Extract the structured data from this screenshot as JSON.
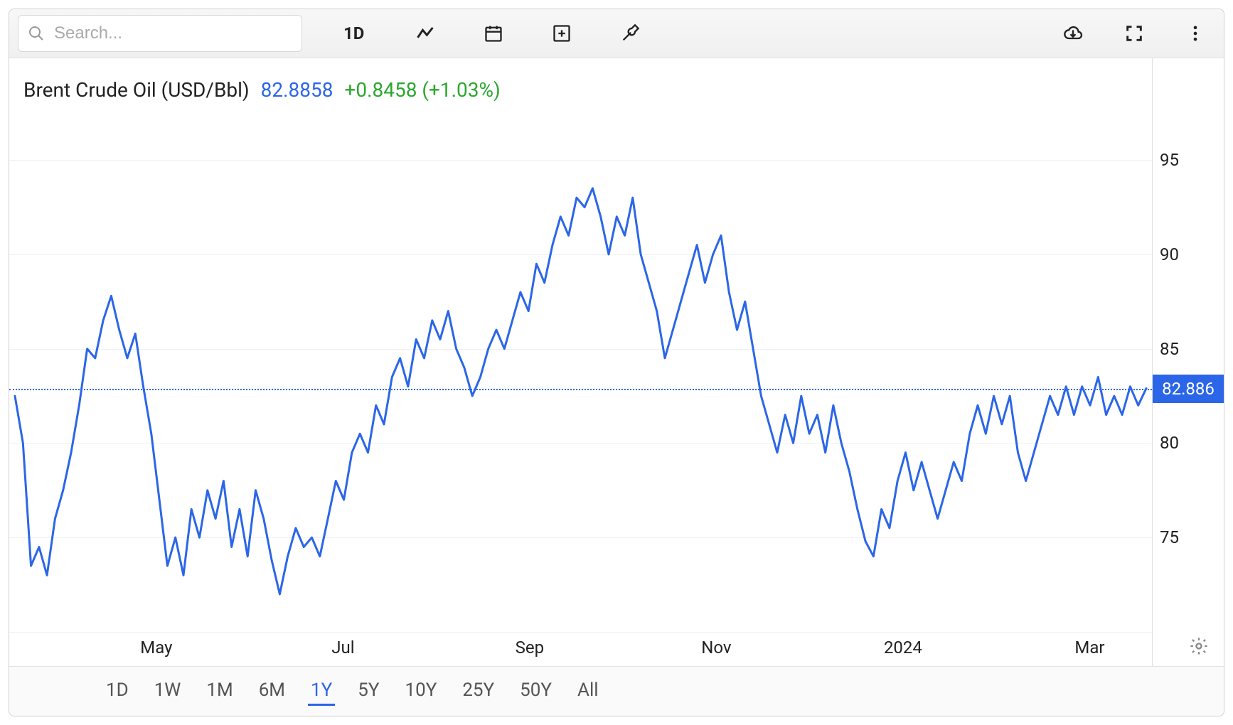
{
  "toolbar": {
    "search_placeholder": "Search...",
    "timeframe_label": "1D"
  },
  "chart": {
    "type": "line",
    "title": "Brent Crude Oil (USD/Bbl)",
    "price": "82.8858",
    "change": "+0.8458 (+1.03%)",
    "series_color": "#2b66e8",
    "line_width": 3,
    "background_color": "#ffffff",
    "grid_color": "#f0f0f0",
    "ylim": [
      70,
      97
    ],
    "yticks": [
      75,
      80,
      85,
      90,
      95
    ],
    "current_value": 82.886,
    "current_label": "82.886",
    "xticks": [
      {
        "label": "May",
        "t": 0.125
      },
      {
        "label": "Jul",
        "t": 0.29
      },
      {
        "label": "Sep",
        "t": 0.455
      },
      {
        "label": "Nov",
        "t": 0.62
      },
      {
        "label": "2024",
        "t": 0.785
      },
      {
        "label": "Mar",
        "t": 0.95
      }
    ],
    "values": [
      82.5,
      80.0,
      73.5,
      74.5,
      73.0,
      76.0,
      77.5,
      79.5,
      82.0,
      85.0,
      84.5,
      86.5,
      87.8,
      86.0,
      84.5,
      85.8,
      83.0,
      80.5,
      77.0,
      73.5,
      75.0,
      73.0,
      76.5,
      75.0,
      77.5,
      76.0,
      78.0,
      74.5,
      76.5,
      74.0,
      77.5,
      76.0,
      73.8,
      72.0,
      74.0,
      75.5,
      74.5,
      75.0,
      74.0,
      76.0,
      78.0,
      77.0,
      79.5,
      80.5,
      79.5,
      82.0,
      81.0,
      83.5,
      84.5,
      83.0,
      85.5,
      84.5,
      86.5,
      85.5,
      87.0,
      85.0,
      84.0,
      82.5,
      83.5,
      85.0,
      86.0,
      85.0,
      86.5,
      88.0,
      87.0,
      89.5,
      88.5,
      90.5,
      92.0,
      91.0,
      93.0,
      92.5,
      93.5,
      92.0,
      90.0,
      92.0,
      91.0,
      93.0,
      90.0,
      88.5,
      87.0,
      84.5,
      86.0,
      87.5,
      89.0,
      90.5,
      88.5,
      90.0,
      91.0,
      88.0,
      86.0,
      87.5,
      85.0,
      82.5,
      81.0,
      79.5,
      81.5,
      80.0,
      82.5,
      80.5,
      81.5,
      79.5,
      82.0,
      80.0,
      78.5,
      76.5,
      74.8,
      74.0,
      76.5,
      75.5,
      78.0,
      79.5,
      77.5,
      79.0,
      77.5,
      76.0,
      77.5,
      79.0,
      78.0,
      80.5,
      82.0,
      80.5,
      82.5,
      81.0,
      82.5,
      79.5,
      78.0,
      79.5,
      81.0,
      82.5,
      81.5,
      83.0,
      81.5,
      83.0,
      82.0,
      83.5,
      81.5,
      82.5,
      81.5,
      83.0,
      82.0,
      82.9
    ]
  },
  "ranges": [
    {
      "label": "1D",
      "active": false
    },
    {
      "label": "1W",
      "active": false
    },
    {
      "label": "1M",
      "active": false
    },
    {
      "label": "6M",
      "active": false
    },
    {
      "label": "1Y",
      "active": true
    },
    {
      "label": "5Y",
      "active": false
    },
    {
      "label": "10Y",
      "active": false
    },
    {
      "label": "25Y",
      "active": false
    },
    {
      "label": "50Y",
      "active": false
    },
    {
      "label": "All",
      "active": false
    }
  ],
  "colors": {
    "accent": "#2b66e8",
    "positive": "#2ba82e",
    "text": "#222222",
    "muted": "#888888"
  }
}
